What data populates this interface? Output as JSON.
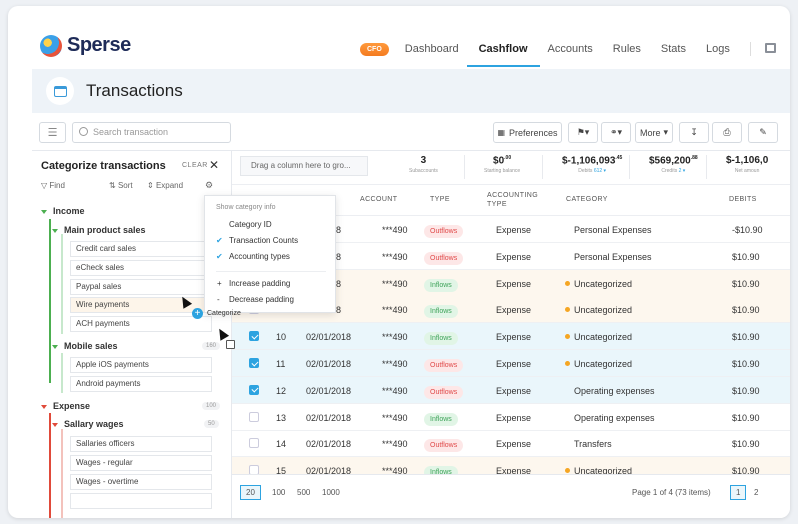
{
  "app": {
    "name": "Sperse"
  },
  "nav": {
    "badge": "CFO",
    "links": [
      "Dashboard",
      "Cashflow",
      "Accounts",
      "Rules",
      "Stats",
      "Logs"
    ],
    "active": "Cashflow"
  },
  "page": {
    "title": "Transactions"
  },
  "toolbar": {
    "search_placeholder": "Search transaction",
    "preferences": "Preferences",
    "more": "More"
  },
  "left_panel": {
    "title": "Categorize transactions",
    "clear": "CLEAR",
    "tools": {
      "find": "Find",
      "sort": "Sort",
      "expand": "Expand"
    },
    "income": {
      "label": "Income",
      "group": "Main product sales",
      "items": [
        "Credit card sales",
        "eCheck sales",
        "Paypal sales",
        "Wire payments",
        "ACH payments"
      ],
      "group2": "Mobile sales",
      "group2_count": "160",
      "items2": [
        "Apple iOS payments",
        "Android payments"
      ]
    },
    "expense": {
      "label": "Expense",
      "count": "100",
      "group": "Sallary wages",
      "group_count": "50",
      "items": [
        "Sallaries officers",
        "Wages - regular",
        "Wages - overtime"
      ]
    }
  },
  "popup": {
    "header": "Show category info",
    "options": [
      {
        "label": "Category ID",
        "checked": false
      },
      {
        "label": "Transaction Counts",
        "checked": true
      },
      {
        "label": "Accounting types",
        "checked": true
      }
    ],
    "actions": [
      "Increase padding",
      "Decrease padding"
    ],
    "action_signs": [
      "+",
      "-"
    ]
  },
  "drag": {
    "label": "Categorize"
  },
  "grid": {
    "drag_hint": "Drag a column here to gro...",
    "summary": [
      {
        "value": "3",
        "label": "Subaccounts"
      },
      {
        "value": "$0",
        "cents": ".00",
        "label": "Starting balance"
      },
      {
        "value": "$-1,106,093",
        "cents": ".45",
        "label": "Debits",
        "extra": "612"
      },
      {
        "value": "$569,200",
        "cents": ".88",
        "label": "Credits",
        "extra": "2"
      },
      {
        "value": "$-1,106,0",
        "cents": "",
        "label": "Net amoun"
      }
    ],
    "columns": [
      "ACCOUNT",
      "TYPE",
      "ACCOUNTING TYPE",
      "CATEGORY",
      "DEBITS"
    ],
    "rows": [
      {
        "num": "",
        "date": "/01/2018",
        "account": "***490",
        "type": "Outflows",
        "acct_type": "Expense",
        "category": "Personal Expenses",
        "debit": "-$10.90",
        "state": "plain",
        "checked": false
      },
      {
        "num": "",
        "date": "/01/2018",
        "account": "***490",
        "type": "Outflows",
        "acct_type": "Expense",
        "category": "Personal Expenses",
        "debit": "$10.90",
        "state": "plain",
        "checked": false
      },
      {
        "num": "",
        "date": "/01/2018",
        "account": "***490",
        "type": "Inflows",
        "acct_type": "Expense",
        "category": "Uncategorized",
        "debit": "$10.90",
        "state": "unc",
        "checked": false
      },
      {
        "num": "",
        "date": "/01/2018",
        "account": "***490",
        "type": "Inflows",
        "acct_type": "Expense",
        "category": "Uncategorized",
        "debit": "$10.90",
        "state": "unc",
        "checked": false
      },
      {
        "num": "10",
        "date": "02/01/2018",
        "account": "***490",
        "type": "Inflows",
        "acct_type": "Expense",
        "category": "Uncategorized",
        "debit": "$10.90",
        "state": "sel",
        "checked": true
      },
      {
        "num": "11",
        "date": "02/01/2018",
        "account": "***490",
        "type": "Outflows",
        "acct_type": "Expense",
        "category": "Uncategorized",
        "debit": "$10.90",
        "state": "sel",
        "checked": true
      },
      {
        "num": "12",
        "date": "02/01/2018",
        "account": "***490",
        "type": "Outflows",
        "acct_type": "Expense",
        "category": "Operating expenses",
        "debit": "$10.90",
        "state": "sel",
        "checked": true
      },
      {
        "num": "13",
        "date": "02/01/2018",
        "account": "***490",
        "type": "Inflows",
        "acct_type": "Expense",
        "category": "Operating expenses",
        "debit": "$10.90",
        "state": "plain",
        "checked": false
      },
      {
        "num": "14",
        "date": "02/01/2018",
        "account": "***490",
        "type": "Outflows",
        "acct_type": "Expense",
        "category": "Transfers",
        "debit": "$10.90",
        "state": "plain",
        "checked": false
      },
      {
        "num": "15",
        "date": "02/01/2018",
        "account": "***490",
        "type": "Inflows",
        "acct_type": "Expense",
        "category": "Uncategorized",
        "debit": "$10.90",
        "state": "unc",
        "checked": false
      }
    ],
    "page_sizes": [
      "20",
      "100",
      "500",
      "1000"
    ],
    "page_info": "Page 1 of 4 (73 items)",
    "pages": [
      "1",
      "2"
    ]
  }
}
